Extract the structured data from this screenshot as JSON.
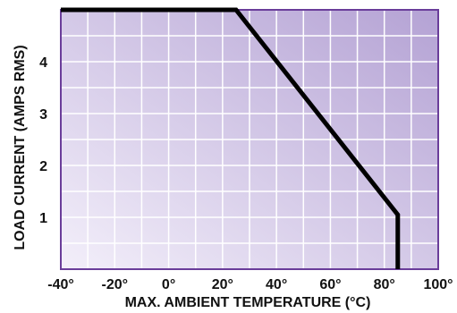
{
  "chart_data": {
    "type": "line",
    "title": "",
    "xlabel": "MAX. AMBIENT TEMPERATURE (°C)",
    "ylabel": "LOAD CURRENT (AMPS RMS)",
    "xlim": [
      -40,
      100
    ],
    "ylim": [
      0,
      5
    ],
    "x_ticks": [
      -40,
      -20,
      0,
      20,
      40,
      60,
      80,
      100
    ],
    "x_tick_labels": [
      "-40°",
      "-20°",
      "0°",
      "20°",
      "40°",
      "60°",
      "80°",
      "100°"
    ],
    "y_ticks": [
      1,
      2,
      3,
      4
    ],
    "y_tick_labels": [
      "1",
      "2",
      "3",
      "4"
    ],
    "grid": true,
    "series": [
      {
        "x": [
          -40,
          25,
          85,
          85
        ],
        "y": [
          5,
          5,
          1.05,
          0
        ]
      }
    ]
  },
  "style": {
    "frame_color": "#6a3d9a",
    "grid_color": "#ffffff",
    "line_color": "#000000",
    "bg_gradient_start": "#f3effa",
    "bg_gradient_end": "#b4a2d4"
  }
}
